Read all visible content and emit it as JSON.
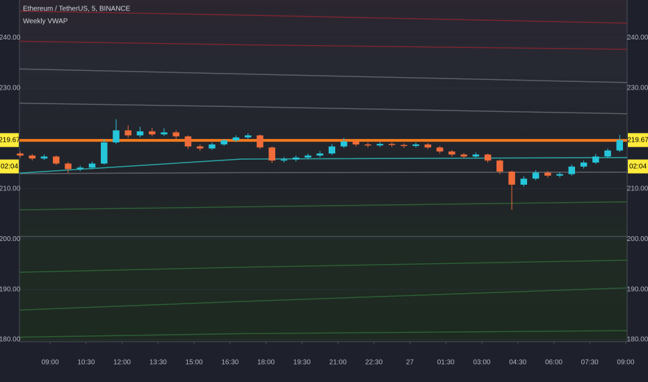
{
  "chart_data": {
    "type": "candlestick",
    "title": "Ethereum / TetherUS, 5, BINANCE",
    "indicator": "Weekly VWAP",
    "countdown": "02:04",
    "up_color": "#26c6da",
    "down_color": "#ef6c3a",
    "xlim": [
      7.72,
      33.06
    ],
    "xticks": [
      {
        "value": 9,
        "label": "09:00"
      },
      {
        "value": 10.5,
        "label": "10:30"
      },
      {
        "value": 12,
        "label": "12:00"
      },
      {
        "value": 13.5,
        "label": "13:30"
      },
      {
        "value": 15,
        "label": "15:00"
      },
      {
        "value": 16.5,
        "label": "16:30"
      },
      {
        "value": 18,
        "label": "18:00"
      },
      {
        "value": 19.5,
        "label": "19:30"
      },
      {
        "value": 21,
        "label": "21:00"
      },
      {
        "value": 22.5,
        "label": "22:30"
      },
      {
        "value": 24,
        "label": "27"
      },
      {
        "value": 25.5,
        "label": "01:30"
      },
      {
        "value": 27,
        "label": "03:00"
      },
      {
        "value": 28.5,
        "label": "04:30"
      },
      {
        "value": 30,
        "label": "06:00"
      },
      {
        "value": 31.5,
        "label": "07:30"
      },
      {
        "value": 33,
        "label": "09:00"
      }
    ],
    "ylim": [
      179.6,
      247.5
    ],
    "yticks": [
      {
        "value": 180,
        "label": "180.00"
      },
      {
        "value": 190,
        "label": "190.00"
      },
      {
        "value": 200,
        "label": "200.00"
      },
      {
        "value": 210,
        "label": "210.00"
      },
      {
        "value": 230,
        "label": "230.00"
      },
      {
        "value": 240,
        "label": "240.00"
      }
    ],
    "x": [
      7.75,
      8.25,
      8.75,
      9.25,
      9.75,
      10.25,
      10.75,
      11.25,
      11.75,
      12.25,
      12.75,
      13.25,
      13.75,
      14.25,
      14.75,
      15.25,
      15.75,
      16.25,
      16.75,
      17.25,
      17.75,
      18.25,
      18.75,
      19.25,
      19.75,
      20.25,
      20.75,
      21.25,
      21.75,
      22.25,
      22.75,
      23.25,
      23.75,
      24.25,
      24.75,
      25.25,
      25.75,
      26.25,
      26.75,
      27.25,
      27.75,
      28.25,
      28.75,
      29.25,
      29.75,
      30.25,
      30.75,
      31.25,
      31.75,
      32.25,
      32.75
    ],
    "open": [
      217.0,
      216.6,
      216.0,
      216.4,
      215.0,
      213.9,
      214.2,
      215.0,
      219.2,
      221.6,
      220.6,
      221.4,
      220.8,
      221.2,
      220.4,
      218.4,
      218.0,
      218.8,
      219.6,
      220.2,
      220.6,
      218.2,
      215.6,
      215.8,
      216.2,
      216.6,
      217.0,
      218.4,
      219.4,
      218.8,
      218.6,
      218.9,
      218.7,
      218.5,
      218.8,
      218.2,
      217.4,
      216.8,
      216.4,
      216.8,
      215.6,
      213.4,
      210.8,
      212.0,
      213.2,
      212.6,
      212.9,
      214.4,
      215.2,
      216.4,
      217.6
    ],
    "high": [
      217.4,
      216.9,
      216.8,
      216.6,
      215.3,
      214.6,
      215.4,
      219.9,
      223.8,
      222.6,
      222.3,
      222.1,
      222.0,
      221.6,
      220.6,
      218.8,
      219.2,
      219.9,
      220.6,
      221.0,
      220.8,
      218.4,
      216.3,
      216.6,
      217.0,
      217.5,
      218.9,
      220.1,
      219.7,
      219.2,
      219.3,
      219.2,
      219.0,
      219.2,
      219.1,
      218.5,
      217.7,
      217.1,
      217.2,
      217.0,
      215.8,
      213.6,
      212.5,
      213.7,
      213.5,
      213.3,
      214.8,
      215.6,
      216.9,
      218.0,
      220.7
    ],
    "low": [
      216.2,
      215.6,
      215.7,
      214.7,
      213.1,
      213.5,
      213.9,
      214.8,
      218.9,
      220.1,
      220.2,
      220.4,
      220.5,
      219.8,
      217.9,
      217.5,
      217.7,
      218.5,
      219.3,
      219.9,
      217.9,
      215.1,
      215.2,
      215.4,
      215.9,
      216.2,
      216.7,
      218.1,
      218.4,
      218.2,
      218.3,
      218.3,
      218.1,
      218.2,
      217.9,
      217.0,
      216.4,
      216.0,
      216.1,
      215.2,
      212.9,
      205.8,
      210.4,
      211.7,
      212.2,
      212.2,
      212.6,
      214.0,
      214.9,
      216.1,
      217.3
    ],
    "close": [
      216.6,
      216.0,
      216.4,
      215.0,
      213.9,
      214.2,
      215.0,
      219.2,
      221.6,
      220.6,
      221.4,
      220.8,
      221.2,
      220.4,
      218.4,
      218.0,
      218.8,
      219.6,
      220.2,
      220.6,
      218.2,
      215.6,
      215.8,
      216.2,
      216.6,
      217.0,
      218.4,
      219.4,
      218.8,
      218.6,
      218.9,
      218.7,
      218.5,
      218.8,
      218.2,
      217.4,
      216.8,
      216.4,
      216.8,
      215.6,
      213.4,
      210.8,
      212.0,
      213.2,
      212.6,
      212.9,
      214.4,
      215.2,
      216.4,
      217.6,
      219.67
    ],
    "line_x": [
      7.72,
      17,
      33.06
    ],
    "lines": [
      {
        "color": "#7a2630",
        "values": [
          245.3,
          244.5,
          242.9
        ]
      },
      {
        "color": "#7a2630",
        "values": [
          239.3,
          238.6,
          237.7
        ]
      },
      {
        "color": "#5d6068",
        "values": [
          233.8,
          232.8,
          231.1
        ]
      },
      {
        "color": "#5d6068",
        "values": [
          227.0,
          226.3,
          224.9
        ]
      },
      {
        "color": "#5d6068",
        "values": [
          213.0,
          213.2,
          213.3
        ]
      },
      {
        "color": "#2aa8a8",
        "values": [
          213.1,
          215.9,
          216.2
        ]
      },
      {
        "color": "#2e5e36",
        "values": [
          205.8,
          206.4,
          207.4
        ]
      },
      {
        "color": "#4a4e56",
        "values": [
          200.5,
          200.5,
          200.5
        ]
      },
      {
        "color": "#2e5e36",
        "values": [
          193.4,
          194.4,
          195.8
        ]
      },
      {
        "color": "#2e5e36",
        "values": [
          185.9,
          187.6,
          190.3
        ]
      },
      {
        "color": "#2e5e36",
        "values": [
          180.5,
          181.2,
          181.8
        ]
      },
      {
        "color": "#f07a1e",
        "width": 4,
        "values": [
          219.6,
          219.6,
          219.6
        ]
      }
    ]
  }
}
